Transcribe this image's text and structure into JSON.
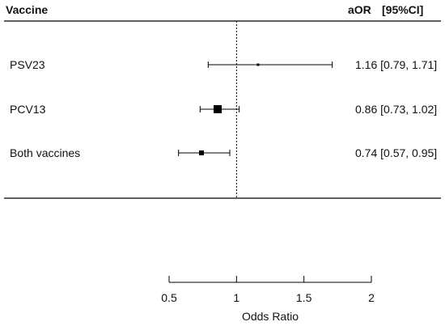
{
  "chart_data": {
    "type": "forest",
    "header": {
      "left": "Vaccine",
      "right_main": "aOR",
      "right_sub": "[95%CI]"
    },
    "reference_line": 1,
    "rows": [
      {
        "label": "PSV23",
        "or": 1.16,
        "lo": 0.79,
        "hi": 1.71,
        "ci_text": "1.16 [0.79, 1.71]",
        "marker": "small"
      },
      {
        "label": "PCV13",
        "or": 0.86,
        "lo": 0.73,
        "hi": 1.02,
        "ci_text": "0.86 [0.73, 1.02]",
        "marker": "large"
      },
      {
        "label": "Both vaccines",
        "or": 0.74,
        "lo": 0.57,
        "hi": 0.95,
        "ci_text": "0.74 [0.57, 0.95]",
        "marker": "medium"
      }
    ],
    "x_ticks": [
      0.5,
      1,
      1.5,
      2
    ],
    "x_tick_labels": [
      "0.5",
      "1",
      "1.5",
      "2"
    ],
    "xlabel": "Odds Ratio",
    "xlim": [
      0.5,
      2
    ]
  }
}
